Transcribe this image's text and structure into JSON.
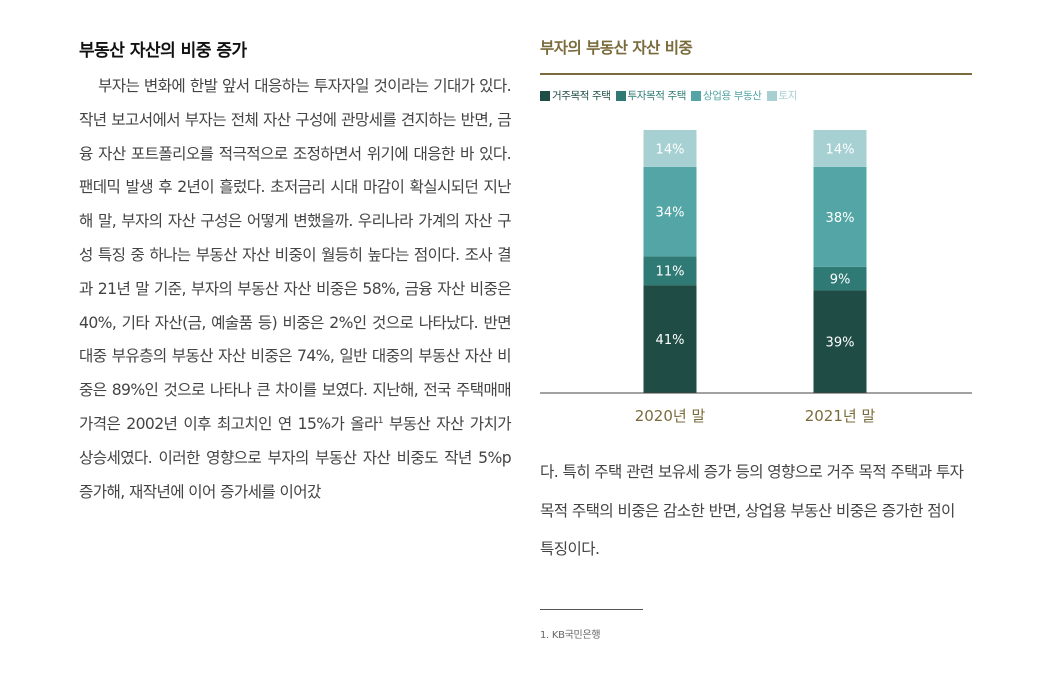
{
  "left": {
    "title": "부동산 자산의 비중 증가",
    "p1": "부자는 변화에 한발 앞서 대응하는 투자자일 것이라는 기대가 있다. 작년 보고서에서 부자는 전체 자산 구성에 관망세를 견지하는 반면, 금융 자산 포트폴리오를 적극적으로 조정하면서 위기에 대응한 바 있다. 팬데믹 발생 후 2년이 흘렀다. 초저금리 시대 마감이 확실시되던 지난해 말, 부자의 자산 구성은 어떻게 변했을까. 우리나라 가계의 자산 구성 특징 중 하나는 부동산 자산 비중이 월등히 높다는 점이다. 조사 결과 21년 말 기준, 부자의 부동산 자산 비중은 58%, 금융 자산 비중은 40%, 기타 자산(금, 예술품 등) 비중은 2%인 것으로 나타났다. 반면 대중 부유층의 부동산 자산 비중은 74%, 일반 대중의 부동산 자산 비중은 89%인 것으로 나타나 큰 차이를 보였다. 지난해, 전국 주택매매 가격은 2002년 이후 최고치인 연 15%가 올라",
    "sup": "1",
    "p2": " 부동산 자산 가치가 상승세였다. 이러한 영향으로 부자의 부동산 자산 비중도 작년 5%p 증가해, 재작년에 이어 증가세를 이어갔"
  },
  "right": {
    "body": "다. 특히 주택 관련 보유세 증가 등의 영향으로 거주 목적 주택과 투자 목적 주택의 비중은 감소한 반면, 상업용 부동산 비중은 증가한 점이 특징이다.",
    "footnote": "1. KB국민은행"
  },
  "chart_data": {
    "type": "bar",
    "stacked": true,
    "title": "부자의 부동산 자산 비중",
    "categories": [
      "2020년 말",
      "2021년 말"
    ],
    "series": [
      {
        "name": "거주목적 주택",
        "values": [
          41,
          39
        ],
        "color": "#1f4d45",
        "label_color": "#ffffff"
      },
      {
        "name": "투자목적 주택",
        "values": [
          11,
          9
        ],
        "color": "#2f7a74",
        "label_color": "#ffffff"
      },
      {
        "name": "상업용 부동산",
        "values": [
          34,
          38
        ],
        "color": "#54a6a6",
        "label_color": "#ffffff"
      },
      {
        "name": "토지",
        "values": [
          14,
          14
        ],
        "color": "#a7d0d3",
        "label_color": "#ffffff"
      }
    ],
    "value_suffix": "%",
    "legend_position": "top-left",
    "grid": false,
    "category_label_color": "#7a6b3c"
  }
}
